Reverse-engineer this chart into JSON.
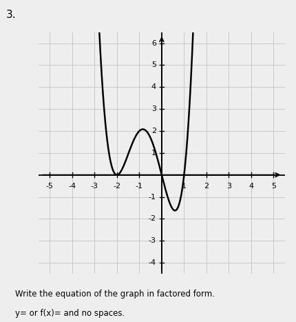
{
  "xlim": [
    -5.5,
    5.5
  ],
  "ylim": [
    -4.5,
    6.5
  ],
  "xticks": [
    -5,
    -4,
    -3,
    -2,
    -1,
    1,
    2,
    3,
    4,
    5
  ],
  "yticks": [
    -4,
    -3,
    -2,
    -1,
    1,
    2,
    3,
    4,
    5,
    6
  ],
  "curve_color": "#000000",
  "curve_linewidth": 1.8,
  "grid_color": "#c8c8c8",
  "background_color": "#eeeeee",
  "label1": "Write the equation of the graph in factored form.",
  "label2": "y= or f(x)= and no spaces.",
  "problem_number": "3.",
  "leading_coeff": 1.0,
  "figsize": [
    4.31,
    4.67
  ],
  "dpi": 100
}
